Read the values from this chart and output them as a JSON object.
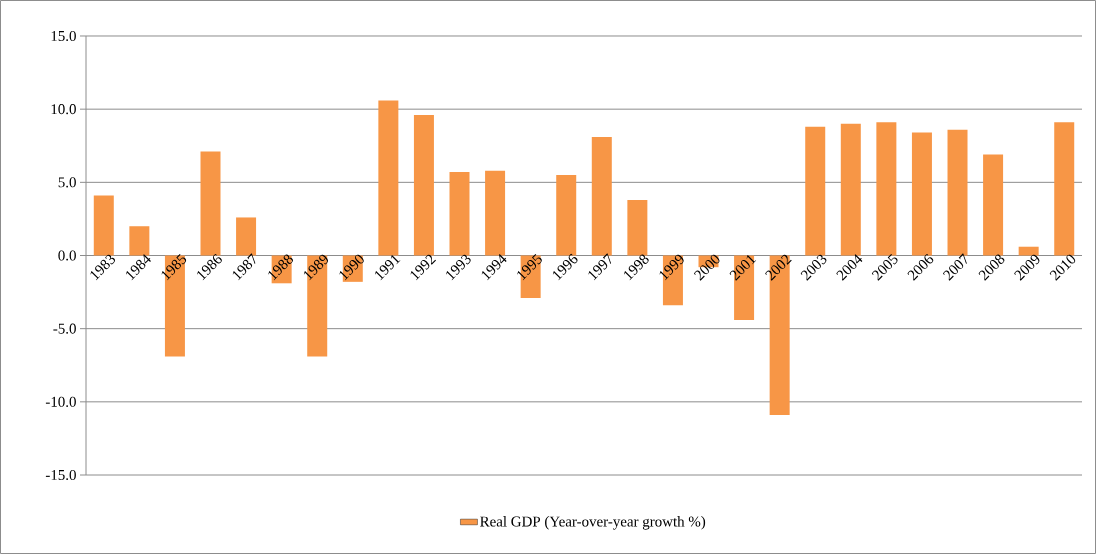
{
  "chart_data": {
    "type": "bar",
    "categories": [
      "1983",
      "1984",
      "1985",
      "1986",
      "1987",
      "1988",
      "1989",
      "1990",
      "1991",
      "1992",
      "1993",
      "1994",
      "1995",
      "1996",
      "1997",
      "1998",
      "1999",
      "2000",
      "2001",
      "2002",
      "2003",
      "2004",
      "2005",
      "2006",
      "2007",
      "2008",
      "2009",
      "2010"
    ],
    "series": [
      {
        "name": "Real GDP (Year-over-year growth %)",
        "color": "#f79646",
        "values": [
          4.1,
          2.0,
          -6.9,
          7.1,
          2.6,
          -1.9,
          -6.9,
          -1.8,
          10.6,
          9.6,
          5.7,
          5.8,
          -2.9,
          5.5,
          8.1,
          3.8,
          -3.4,
          -0.8,
          -4.4,
          -10.9,
          8.8,
          9.0,
          9.1,
          8.4,
          8.6,
          6.9,
          0.6,
          9.1
        ]
      }
    ],
    "ylim": [
      -15,
      15
    ],
    "yticks": [
      {
        "value": -15,
        "label": "-15.0"
      },
      {
        "value": -10,
        "label": "-10.0"
      },
      {
        "value": -5,
        "label": "-5.0"
      },
      {
        "value": 0,
        "label": "0.0"
      },
      {
        "value": 5,
        "label": "5.0"
      },
      {
        "value": 10,
        "label": "10.0"
      },
      {
        "value": 15,
        "label": "15.0"
      }
    ],
    "grid": "y",
    "legend": "bottom"
  }
}
